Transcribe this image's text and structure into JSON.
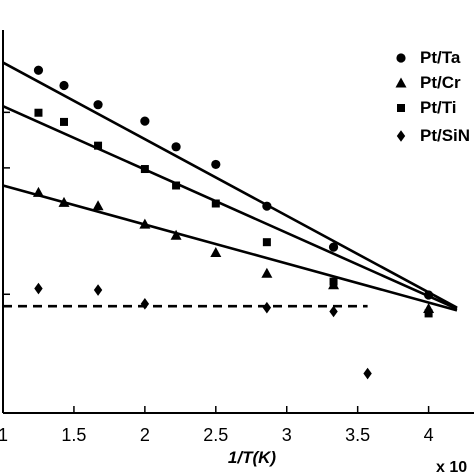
{
  "chart_data": {
    "type": "scatter",
    "xlabel": "1/T(K)",
    "x_exponent_label": "x 10",
    "xlim": [
      1,
      4.32
    ],
    "ylim": [
      0,
      1
    ],
    "xticks": [
      1,
      1.5,
      2,
      2.5,
      3,
      3.5,
      4
    ],
    "xtick_labels": [
      "1",
      "1.5",
      "2",
      "2.5",
      "3",
      "3.5",
      "4"
    ],
    "ytick_values": [
      0.31,
      0.64,
      0.785
    ],
    "legend_position": "top-right",
    "series": [
      {
        "name": "Pt/Ta",
        "marker": "circle",
        "points": [
          [
            1.25,
            0.895
          ],
          [
            1.43,
            0.855
          ],
          [
            1.67,
            0.805
          ],
          [
            2.0,
            0.762
          ],
          [
            2.22,
            0.695
          ],
          [
            2.5,
            0.649
          ],
          [
            2.86,
            0.54
          ],
          [
            3.33,
            0.433
          ],
          [
            4.0,
            0.308
          ]
        ],
        "fit": [
          [
            1.0,
            0.915
          ],
          [
            4.2,
            0.275
          ]
        ]
      },
      {
        "name": "Pt/Cr",
        "marker": "triangle",
        "points": [
          [
            1.25,
            0.576
          ],
          [
            1.43,
            0.55
          ],
          [
            1.67,
            0.541
          ],
          [
            2.0,
            0.493
          ],
          [
            2.22,
            0.464
          ],
          [
            2.5,
            0.419
          ],
          [
            2.86,
            0.365
          ],
          [
            3.33,
            0.335
          ],
          [
            4.0,
            0.273
          ]
        ],
        "fit": [
          [
            1.0,
            0.594
          ],
          [
            4.2,
            0.268
          ]
        ]
      },
      {
        "name": "Pt/Ti",
        "marker": "square",
        "points": [
          [
            1.25,
            0.784
          ],
          [
            1.43,
            0.76
          ],
          [
            1.67,
            0.698
          ],
          [
            2.0,
            0.637
          ],
          [
            2.22,
            0.594
          ],
          [
            2.5,
            0.547
          ],
          [
            2.86,
            0.446
          ],
          [
            3.33,
            0.343
          ],
          [
            4.0,
            0.26
          ]
        ],
        "fit": [
          [
            1.0,
            0.801
          ],
          [
            4.2,
            0.272
          ]
        ]
      },
      {
        "name": "Pt/SiN",
        "marker": "diamond",
        "points": [
          [
            1.25,
            0.325
          ],
          [
            1.67,
            0.321
          ],
          [
            2.0,
            0.285
          ],
          [
            2.86,
            0.275
          ],
          [
            3.33,
            0.265
          ],
          [
            3.57,
            0.103
          ]
        ],
        "fit_dashed": [
          [
            1.0,
            0.279
          ],
          [
            3.57,
            0.279
          ]
        ]
      }
    ]
  }
}
